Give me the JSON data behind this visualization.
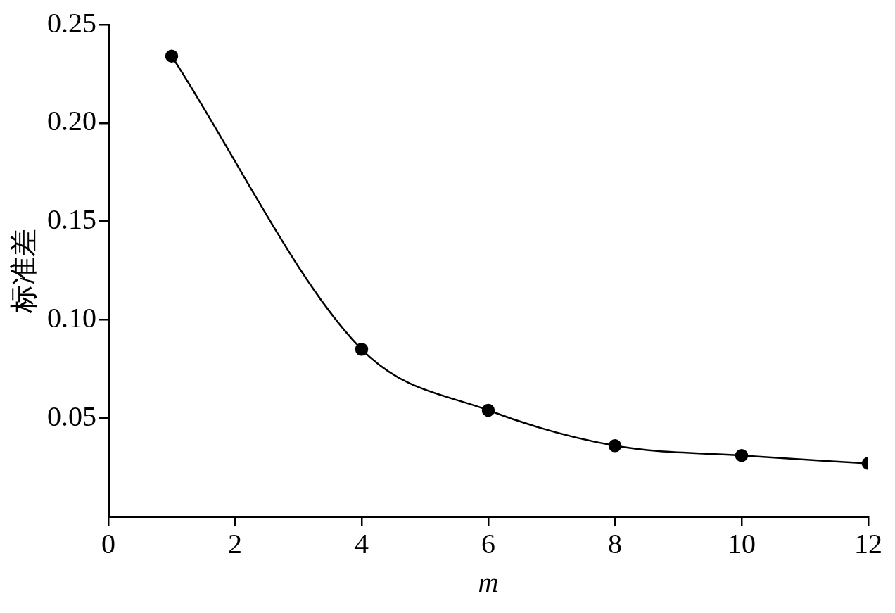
{
  "chart_data": {
    "type": "line",
    "xlabel": "m",
    "ylabel": "标准差",
    "x": [
      1,
      4,
      6,
      8,
      10,
      12
    ],
    "series": [
      {
        "color": "#000000",
        "values": [
          0.234,
          0.085,
          0.054,
          0.036,
          0.031,
          0.027
        ]
      }
    ],
    "xlim": [
      0,
      12
    ],
    "xticks": [
      0,
      2,
      4,
      6,
      8,
      10,
      12
    ],
    "ylim": [
      0,
      0.25
    ],
    "yticks": [
      {
        "value": 0.05,
        "label": "0.05"
      },
      {
        "value": 0.1,
        "label": "0.10"
      },
      {
        "value": 0.15,
        "label": "0.15"
      },
      {
        "value": 0.2,
        "label": "0.20"
      },
      {
        "value": 0.25,
        "label": "0.25"
      }
    ],
    "marker": "circle",
    "line_style": "solid"
  }
}
